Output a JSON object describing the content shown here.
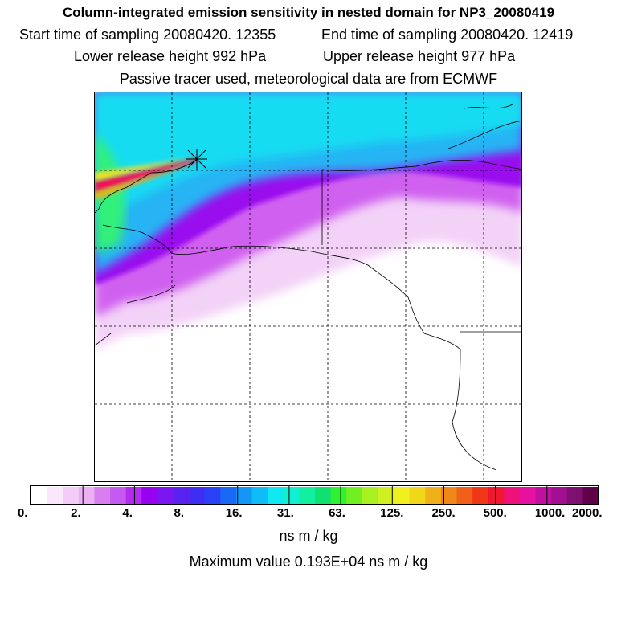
{
  "title": "Column-integrated emission sensitivity in nested domain for NP3_20080419",
  "header": {
    "start_label": "Start time of sampling 20080420. 12355",
    "end_label": "End time of sampling 20080420. 12419",
    "lower_label": "Lower release height  992 hPa",
    "upper_label": "Upper release height  977 hPa",
    "tracer_note": "Passive tracer used, meteorological data are from ECMWF"
  },
  "colorbar": {
    "ticks": [
      "0.",
      "2.",
      "4.",
      "8.",
      "16.",
      "31.",
      "63.",
      "125.",
      "250.",
      "500.",
      "1000.",
      "2000."
    ],
    "colors": [
      "#ffffff",
      "#fbe6fb",
      "#f5ccf7",
      "#eab0f2",
      "#d97ef0",
      "#c65af0",
      "#b22cf0",
      "#9800f0",
      "#7a16f0",
      "#5a22f2",
      "#3e2ef4",
      "#2840f6",
      "#1868f6",
      "#1496f8",
      "#10bcf8",
      "#10e8f0",
      "#10f0d0",
      "#10f0a0",
      "#10e070",
      "#30f030",
      "#70f020",
      "#a8f020",
      "#d0f020",
      "#f0f020",
      "#f0d818",
      "#f0b018",
      "#f08818",
      "#f06018",
      "#f03818",
      "#f01830",
      "#f0107a",
      "#e810a0",
      "#c010a0",
      "#a01090",
      "#801070",
      "#600048"
    ],
    "units": "ns m / kg"
  },
  "max_value_text": "Maximum value  0.193E+04 ns m / kg",
  "map": {
    "release_marker": "release-point-asterisk",
    "grid": "dashed lat-lon lines",
    "background": "#ffffff"
  }
}
